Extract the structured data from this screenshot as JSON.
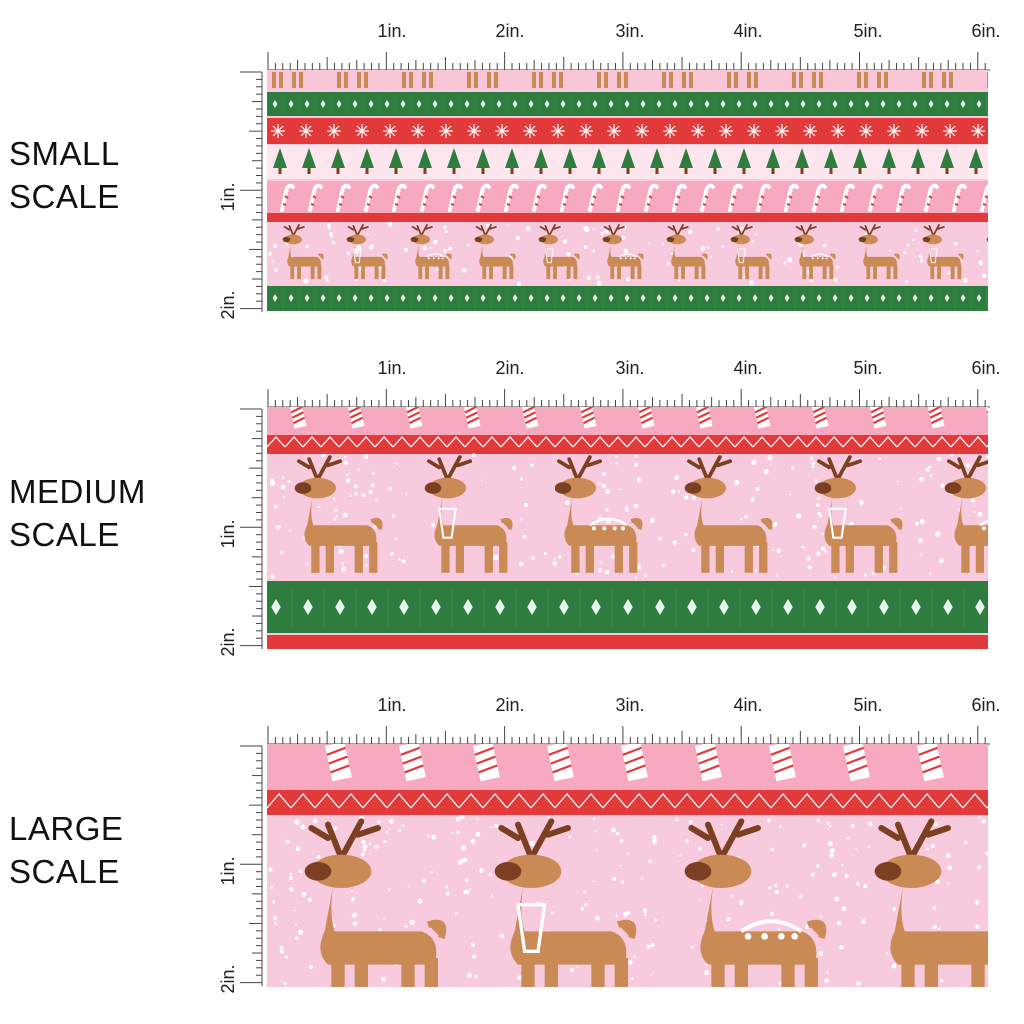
{
  "colors": {
    "pink_light": "#f7cbdd",
    "pink": "#f7a9bf",
    "red": "#e23a3a",
    "green": "#2f7d3e",
    "white": "#ffffff",
    "tan": "#c98a55",
    "brown": "#7b3f22"
  },
  "ruler": {
    "h_labels": [
      "1in.",
      "2in.",
      "3in.",
      "4in.",
      "5in.",
      "6in."
    ],
    "v_labels": [
      "1in.",
      "2in."
    ]
  },
  "panels": [
    {
      "label_line1": "SMALL",
      "label_line2": "SCALE"
    },
    {
      "label_line1": "MEDIUM",
      "label_line2": "SCALE"
    },
    {
      "label_line1": "LARGE",
      "label_line2": "SCALE"
    }
  ]
}
